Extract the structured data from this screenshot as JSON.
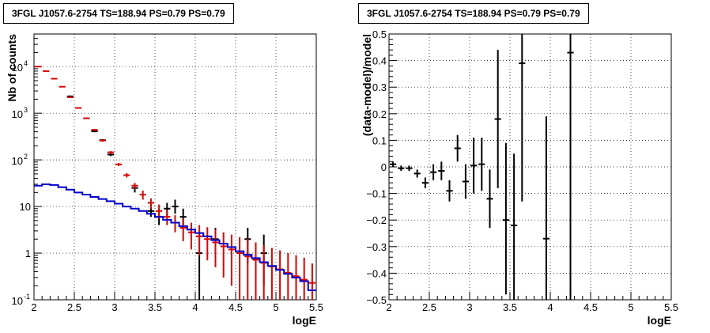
{
  "chart_data": [
    {
      "type": "line",
      "title": "3FGL J1057.6-2754 TS=188.94 PS=0.79 PS=0.79",
      "xlabel": "logE",
      "ylabel": "Nb of counts",
      "xlim": [
        2,
        5.5
      ],
      "ylim": [
        0.1,
        50000
      ],
      "yscale": "log",
      "grid": true,
      "x_ticks": [
        "2",
        "2.5",
        "3",
        "3.5",
        "4",
        "4.5",
        "5",
        "5.5"
      ],
      "y_ticks": [
        {
          "value": 0.1,
          "base": "10",
          "exp": "-1"
        },
        {
          "value": 1,
          "label": "1"
        },
        {
          "value": 10,
          "label": "10"
        },
        {
          "value": 100,
          "base": "10",
          "exp": "2"
        },
        {
          "value": 1000,
          "base": "10",
          "exp": "3"
        },
        {
          "value": 10000,
          "base": "10",
          "exp": "4"
        }
      ],
      "series": [
        {
          "color": "#000000",
          "style": "errorbar",
          "points": [
            {
              "x": 2.45,
              "y": 2300,
              "lo": 2200,
              "hi": 2400
            },
            {
              "x": 2.75,
              "y": 410,
              "lo": 390,
              "hi": 430
            },
            {
              "x": 2.85,
              "y": 265,
              "lo": 250,
              "hi": 280
            },
            {
              "x": 2.95,
              "y": 130,
              "lo": 120,
              "hi": 140
            },
            {
              "x": 3.25,
              "y": 25,
              "lo": 20,
              "hi": 30
            },
            {
              "x": 3.45,
              "y": 8,
              "lo": 6,
              "hi": 11
            },
            {
              "x": 3.55,
              "y": 6,
              "lo": 4,
              "hi": 9
            },
            {
              "x": 3.65,
              "y": 9,
              "lo": 6,
              "hi": 12
            },
            {
              "x": 3.75,
              "y": 10,
              "lo": 7,
              "hi": 14
            },
            {
              "x": 3.85,
              "y": 6,
              "lo": 4,
              "hi": 9
            },
            {
              "x": 4.05,
              "y": 1,
              "lo": 0.1,
              "hi": 3
            },
            {
              "x": 4.25,
              "y": 2,
              "lo": 0.6,
              "hi": 3.5
            },
            {
              "x": 4.65,
              "y": 2,
              "lo": 0.6,
              "hi": 3.5
            },
            {
              "x": 4.85,
              "y": 1,
              "lo": 0.2,
              "hi": 2.5
            }
          ]
        },
        {
          "color": "#dd0000",
          "style": "errorbar",
          "points": [
            {
              "x": 2.05,
              "y": 10000,
              "lo": 9800,
              "hi": 10200
            },
            {
              "x": 2.15,
              "y": 8000,
              "lo": 7900,
              "hi": 8100
            },
            {
              "x": 2.25,
              "y": 5500,
              "lo": 5450,
              "hi": 5550
            },
            {
              "x": 2.35,
              "y": 3700,
              "lo": 3650,
              "hi": 3750
            },
            {
              "x": 2.45,
              "y": 2200,
              "lo": 2150,
              "hi": 2250
            },
            {
              "x": 2.55,
              "y": 1300,
              "lo": 1270,
              "hi": 1330
            },
            {
              "x": 2.65,
              "y": 780,
              "lo": 760,
              "hi": 800
            },
            {
              "x": 2.75,
              "y": 440,
              "lo": 420,
              "hi": 460
            },
            {
              "x": 2.85,
              "y": 260,
              "lo": 245,
              "hi": 275
            },
            {
              "x": 2.95,
              "y": 145,
              "lo": 135,
              "hi": 155
            },
            {
              "x": 3.05,
              "y": 80,
              "lo": 74,
              "hi": 86
            },
            {
              "x": 3.15,
              "y": 47,
              "lo": 42,
              "hi": 52
            },
            {
              "x": 3.25,
              "y": 28,
              "lo": 24,
              "hi": 32
            },
            {
              "x": 3.35,
              "y": 18,
              "lo": 14,
              "hi": 22
            },
            {
              "x": 3.45,
              "y": 12,
              "lo": 9,
              "hi": 15
            },
            {
              "x": 3.55,
              "y": 8,
              "lo": 5.5,
              "hi": 11
            },
            {
              "x": 3.65,
              "y": 6,
              "lo": 4,
              "hi": 8.5
            },
            {
              "x": 3.75,
              "y": 4.5,
              "lo": 2.8,
              "hi": 6.5
            },
            {
              "x": 3.85,
              "y": 3.5,
              "lo": 1.8,
              "hi": 5.5
            },
            {
              "x": 3.95,
              "y": 2.8,
              "lo": 1.2,
              "hi": 4.5
            },
            {
              "x": 4.05,
              "y": 2.3,
              "lo": 0.9,
              "hi": 4.0
            },
            {
              "x": 4.15,
              "y": 2.0,
              "lo": 0.7,
              "hi": 3.6
            },
            {
              "x": 4.25,
              "y": 1.7,
              "lo": 0.5,
              "hi": 3.2
            },
            {
              "x": 4.35,
              "y": 1.4,
              "lo": 0.3,
              "hi": 2.8
            },
            {
              "x": 4.45,
              "y": 1.2,
              "lo": 0.2,
              "hi": 2.5
            },
            {
              "x": 4.55,
              "y": 1.0,
              "lo": 0.1,
              "hi": 2.2
            },
            {
              "x": 4.65,
              "y": 0.85,
              "lo": 0.1,
              "hi": 2.0
            },
            {
              "x": 4.75,
              "y": 0.72,
              "lo": 0.1,
              "hi": 1.7
            },
            {
              "x": 4.85,
              "y": 0.62,
              "lo": 0.1,
              "hi": 1.5
            },
            {
              "x": 4.95,
              "y": 0.52,
              "lo": 0.1,
              "hi": 1.3
            },
            {
              "x": 5.05,
              "y": 0.45,
              "lo": 0.1,
              "hi": 1.15
            },
            {
              "x": 5.15,
              "y": 0.38,
              "lo": 0.1,
              "hi": 1.0
            },
            {
              "x": 5.25,
              "y": 0.32,
              "lo": 0.1,
              "hi": 0.9
            },
            {
              "x": 5.35,
              "y": 0.27,
              "lo": 0.1,
              "hi": 0.8
            },
            {
              "x": 5.45,
              "y": 0.23,
              "lo": 0.1,
              "hi": 0.6
            }
          ]
        },
        {
          "color": "#0000cc",
          "style": "step",
          "bin_width": 0.1,
          "x": [
            2.05,
            2.15,
            2.25,
            2.35,
            2.45,
            2.55,
            2.65,
            2.75,
            2.85,
            2.95,
            3.05,
            3.15,
            3.25,
            3.35,
            3.45,
            3.55,
            3.65,
            3.75,
            3.85,
            3.95,
            4.05,
            4.15,
            4.25,
            4.35,
            4.45,
            4.55,
            4.65,
            4.75,
            4.85,
            4.95,
            5.05,
            5.15,
            5.25,
            5.35,
            5.45
          ],
          "y": [
            28,
            30,
            29,
            26,
            23,
            20,
            18,
            16,
            14.5,
            13,
            11.5,
            10,
            9,
            8,
            7,
            6,
            5.2,
            4.5,
            3.8,
            3.2,
            2.7,
            2.3,
            1.9,
            1.6,
            1.35,
            1.1,
            0.92,
            0.78,
            0.64,
            0.53,
            0.44,
            0.36,
            0.3,
            0.25,
            0.16
          ]
        }
      ]
    },
    {
      "type": "scatter",
      "title": "3FGL J1057.6-2754 TS=188.94 PS=0.79 PS=0.79",
      "xlabel": "logE",
      "ylabel": "(data-model)/model",
      "xlim": [
        2,
        5.5
      ],
      "ylim": [
        -0.5,
        0.5
      ],
      "grid": true,
      "x_ticks": [
        "2",
        "2.5",
        "3",
        "3.5",
        "4",
        "4.5",
        "5",
        "5.5"
      ],
      "y_ticks": [
        "−0.5",
        "−0.4",
        "−0.3",
        "−0.2",
        "−0.1",
        "0",
        "0.1",
        "0.2",
        "0.3",
        "0.4",
        "0.5"
      ],
      "series": [
        {
          "color": "#000000",
          "style": "errorbar",
          "points": [
            {
              "x": 2.05,
              "y": 0.01,
              "lo": 0.0,
              "hi": 0.02
            },
            {
              "x": 2.15,
              "y": -0.005,
              "lo": -0.015,
              "hi": 0.005
            },
            {
              "x": 2.25,
              "y": -0.005,
              "lo": -0.015,
              "hi": 0.005
            },
            {
              "x": 2.35,
              "y": -0.025,
              "lo": -0.04,
              "hi": -0.01
            },
            {
              "x": 2.45,
              "y": -0.06,
              "lo": -0.08,
              "hi": -0.04
            },
            {
              "x": 2.55,
              "y": -0.02,
              "lo": -0.05,
              "hi": 0.01
            },
            {
              "x": 2.65,
              "y": -0.015,
              "lo": -0.05,
              "hi": 0.02
            },
            {
              "x": 2.75,
              "y": -0.09,
              "lo": -0.13,
              "hi": -0.05
            },
            {
              "x": 2.85,
              "y": 0.07,
              "lo": 0.02,
              "hi": 0.12
            },
            {
              "x": 2.95,
              "y": -0.055,
              "lo": -0.12,
              "hi": 0.01
            },
            {
              "x": 3.05,
              "y": 0.005,
              "lo": -0.1,
              "hi": 0.11
            },
            {
              "x": 3.15,
              "y": 0.01,
              "lo": -0.09,
              "hi": 0.11
            },
            {
              "x": 3.25,
              "y": -0.12,
              "lo": -0.23,
              "hi": -0.01
            },
            {
              "x": 3.35,
              "y": 0.18,
              "lo": -0.08,
              "hi": 0.44
            },
            {
              "x": 3.45,
              "y": -0.2,
              "lo": -0.48,
              "hi": 0.09
            },
            {
              "x": 3.55,
              "y": -0.22,
              "lo": -0.5,
              "hi": 0.05
            },
            {
              "x": 3.65,
              "y": 0.39,
              "lo": -0.13,
              "hi": 0.5
            },
            {
              "x": 3.95,
              "y": -0.27,
              "lo": -0.5,
              "hi": 0.19
            },
            {
              "x": 4.25,
              "y": 0.43,
              "lo": -0.5,
              "hi": 0.5
            }
          ]
        }
      ]
    }
  ]
}
